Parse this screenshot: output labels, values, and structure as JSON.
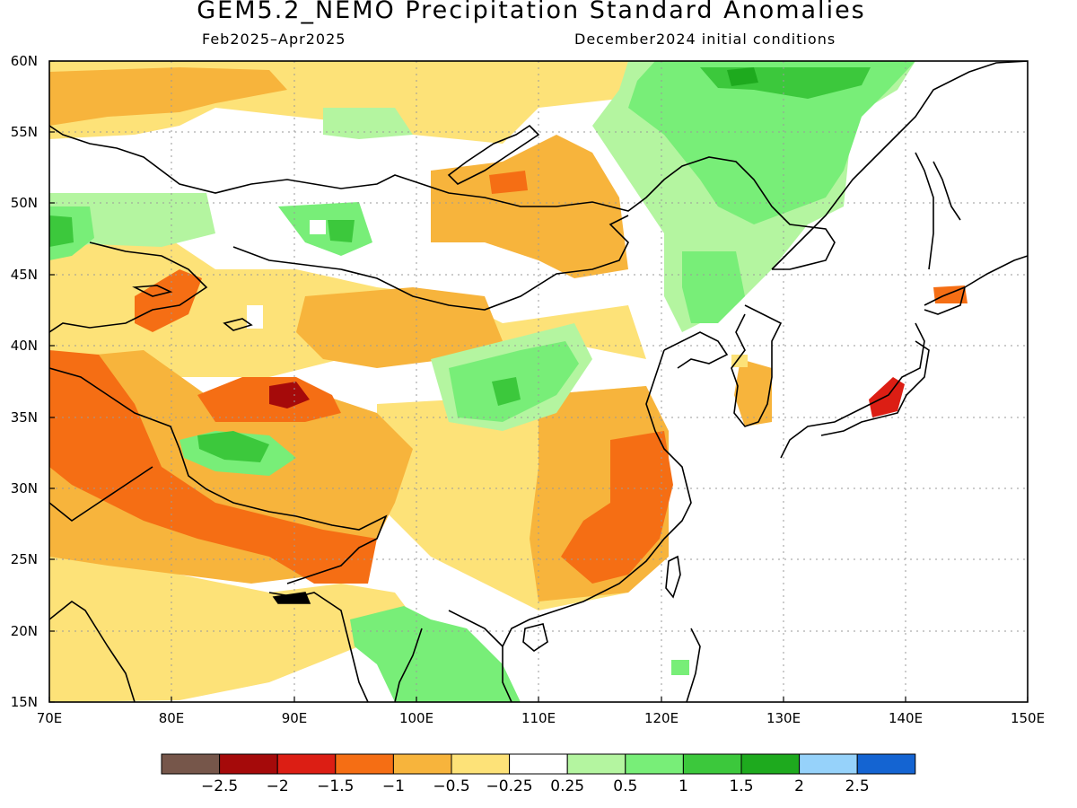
{
  "title": "GEM5.2_NEMO Precipitation Standard Anomalies",
  "subtitle_left": "Feb2025–Apr2025",
  "subtitle_right": "December2024 initial conditions",
  "map": {
    "lon_range": [
      70,
      150
    ],
    "lat_range": [
      15,
      60
    ],
    "grid": true,
    "lon_ticks": [
      "70E",
      "80E",
      "90E",
      "100E",
      "110E",
      "120E",
      "130E",
      "140E",
      "150E"
    ],
    "lat_ticks": [
      "15N",
      "20N",
      "25N",
      "30N",
      "35N",
      "40N",
      "45N",
      "50N",
      "55N",
      "60N"
    ]
  },
  "colorbar": {
    "colors": [
      "#76564a",
      "#a50a0a",
      "#dc1e14",
      "#f56e14",
      "#f7b43c",
      "#fde278",
      "#ffffff",
      "#b4f5a0",
      "#78ee78",
      "#3cc83c",
      "#1eaa1e",
      "#96d2fa",
      "#1464d2"
    ],
    "labels": [
      "−2.5",
      "−2",
      "−1.5",
      "−1",
      "−0.5",
      "−0.25",
      "0.25",
      "0.5",
      "1",
      "1.5",
      "2",
      "2.5"
    ]
  },
  "anomaly_regions": [
    {
      "name": "northern-band",
      "level": "-0.25"
    },
    {
      "name": "mongolia-dry",
      "level": "-0.5"
    },
    {
      "name": "tibet-max-dry",
      "level": "-2"
    },
    {
      "name": "himalaya-dry",
      "level": "-1"
    },
    {
      "name": "south-china-dry",
      "level": "-1"
    },
    {
      "name": "japan-dry",
      "level": "-1.5"
    },
    {
      "name": "manchuria-wet",
      "level": "1"
    },
    {
      "name": "kazakh-wet",
      "level": "1"
    },
    {
      "name": "tibet-wet",
      "level": "1.5"
    },
    {
      "name": "central-china-wet",
      "level": "1"
    },
    {
      "name": "indochina-wet",
      "level": "0.5"
    }
  ]
}
